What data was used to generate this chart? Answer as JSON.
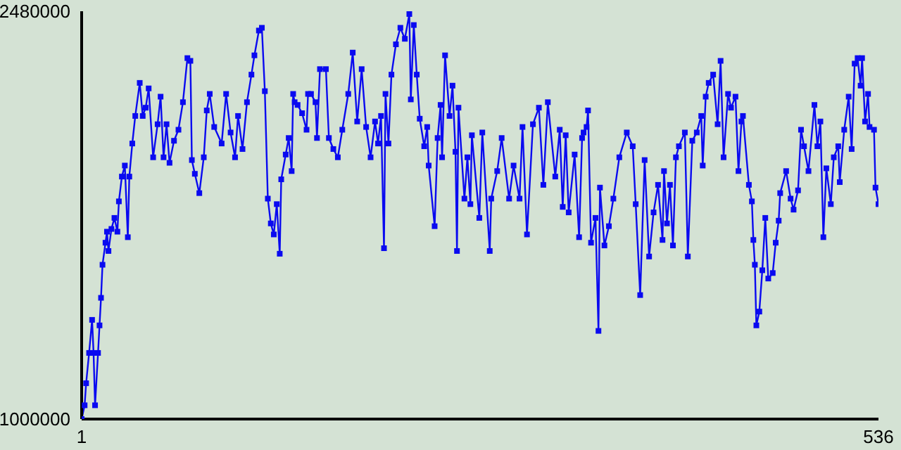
{
  "chart_data": {
    "type": "line",
    "x": [
      1,
      3,
      4,
      6,
      8,
      9,
      10,
      12,
      13,
      14,
      15,
      17,
      18,
      19,
      21,
      23,
      25,
      26,
      28,
      30,
      32,
      33,
      35,
      37,
      40,
      42,
      44,
      46,
      49,
      52,
      54,
      56,
      58,
      60,
      63,
      66,
      69,
      72,
      74,
      75,
      77,
      80,
      83,
      85,
      87,
      90,
      95,
      98,
      101,
      104,
      106,
      109,
      112,
      115,
      117,
      120,
      122,
      124,
      126,
      128,
      130,
      132,
      134,
      135,
      138,
      140,
      142,
      143,
      144,
      146,
      149,
      152,
      153,
      155,
      158,
      159,
      161,
      165,
      167,
      170,
      173,
      176,
      180,
      183,
      186,
      189,
      192,
      195,
      198,
      200,
      202,
      204,
      205,
      207,
      209,
      212,
      215,
      218,
      221,
      222,
      224,
      226,
      228,
      231,
      233,
      234,
      238,
      240,
      242,
      243,
      245,
      248,
      250,
      252,
      253,
      254,
      258,
      260,
      262,
      263,
      268,
      270,
      275,
      276,
      280,
      283,
      288,
      291,
      295,
      297,
      300,
      304,
      308,
      311,
      314,
      319,
      322,
      324,
      326,
      328,
      332,
      335,
      337,
      338,
      340,
      341,
      343,
      346,
      348,
      349,
      352,
      355,
      358,
      362,
      367,
      371,
      373,
      376,
      379,
      382,
      385,
      388,
      391,
      392,
      394,
      396,
      398,
      400,
      402,
      406,
      408,
      411,
      414,
      417,
      418,
      420,
      422,
      425,
      428,
      430,
      432,
      435,
      437,
      440,
      442,
      444,
      445,
      449,
      451,
      452,
      453,
      454,
      456,
      458,
      460,
      462,
      465,
      467,
      469,
      470,
      474,
      477,
      479,
      482,
      484,
      486,
      489,
      493,
      495,
      497,
      499,
      501,
      504,
      506,
      509,
      510,
      513,
      516,
      518,
      520,
      522,
      524,
      525,
      527,
      529,
      530,
      533,
      534,
      536
    ],
    "series": [
      {
        "color": "#0a0af0",
        "values": [
          1000000,
          1050000,
          1130000,
          1240000,
          1360000,
          1240000,
          1050000,
          1240000,
          1340000,
          1440000,
          1560000,
          1640000,
          1680000,
          1610000,
          1690000,
          1730000,
          1680000,
          1790000,
          1880000,
          1920000,
          1660000,
          1880000,
          2000000,
          2100000,
          2220000,
          2100000,
          2130000,
          2200000,
          1950000,
          2070000,
          2170000,
          1950000,
          2070000,
          1930000,
          2010000,
          2050000,
          2150000,
          2310000,
          2300000,
          1940000,
          1890000,
          1820000,
          1950000,
          2120000,
          2180000,
          2060000,
          2000000,
          2180000,
          2040000,
          1950000,
          2100000,
          1980000,
          2150000,
          2250000,
          2320000,
          2410000,
          2420000,
          2190000,
          1800000,
          1710000,
          1670000,
          1780000,
          1600000,
          1870000,
          1960000,
          2020000,
          1900000,
          2180000,
          2150000,
          2140000,
          2110000,
          2050000,
          2180000,
          2180000,
          2150000,
          2020000,
          2270000,
          2270000,
          2020000,
          1980000,
          1950000,
          2050000,
          2180000,
          2330000,
          2080000,
          2270000,
          2060000,
          1950000,
          2080000,
          2000000,
          2100000,
          1620000,
          2180000,
          2000000,
          2250000,
          2360000,
          2420000,
          2380000,
          2470000,
          2160000,
          2430000,
          2250000,
          2090000,
          1990000,
          2060000,
          1920000,
          1700000,
          2020000,
          2140000,
          1950000,
          2320000,
          2100000,
          2210000,
          1970000,
          1610000,
          2130000,
          1800000,
          1950000,
          1780000,
          2030000,
          1730000,
          2040000,
          1610000,
          1800000,
          1900000,
          2020000,
          1800000,
          1920000,
          1800000,
          2060000,
          1670000,
          2070000,
          2130000,
          1850000,
          2150000,
          1880000,
          2050000,
          1770000,
          2030000,
          1750000,
          1960000,
          1660000,
          2020000,
          2040000,
          2060000,
          2120000,
          1640000,
          1730000,
          1320000,
          1840000,
          1630000,
          1700000,
          1800000,
          1950000,
          2040000,
          1990000,
          1780000,
          1450000,
          1940000,
          1590000,
          1750000,
          1850000,
          1650000,
          1900000,
          1710000,
          1850000,
          1630000,
          1950000,
          1990000,
          2040000,
          1590000,
          2010000,
          2040000,
          2100000,
          1920000,
          2170000,
          2220000,
          2250000,
          2070000,
          2300000,
          1950000,
          2180000,
          2130000,
          2170000,
          1900000,
          2080000,
          2100000,
          1850000,
          1790000,
          1650000,
          1560000,
          1340000,
          1390000,
          1540000,
          1730000,
          1510000,
          1530000,
          1640000,
          1720000,
          1820000,
          1900000,
          1800000,
          1760000,
          1830000,
          2050000,
          1990000,
          1900000,
          2140000,
          1990000,
          2080000,
          1660000,
          1910000,
          1780000,
          1950000,
          1990000,
          1860000,
          2050000,
          2170000,
          1980000,
          2290000,
          2310000,
          2210000,
          2310000,
          2080000,
          2180000,
          2060000,
          2050000,
          1840000,
          1780000
        ]
      }
    ],
    "xlim": [
      1,
      536
    ],
    "xticks": [
      1,
      536
    ],
    "ylim": [
      1000000,
      2480000
    ],
    "yticks": [
      1000000,
      2480000
    ],
    "grid": false,
    "legend": false,
    "marker": "square",
    "line_style": "solid"
  }
}
